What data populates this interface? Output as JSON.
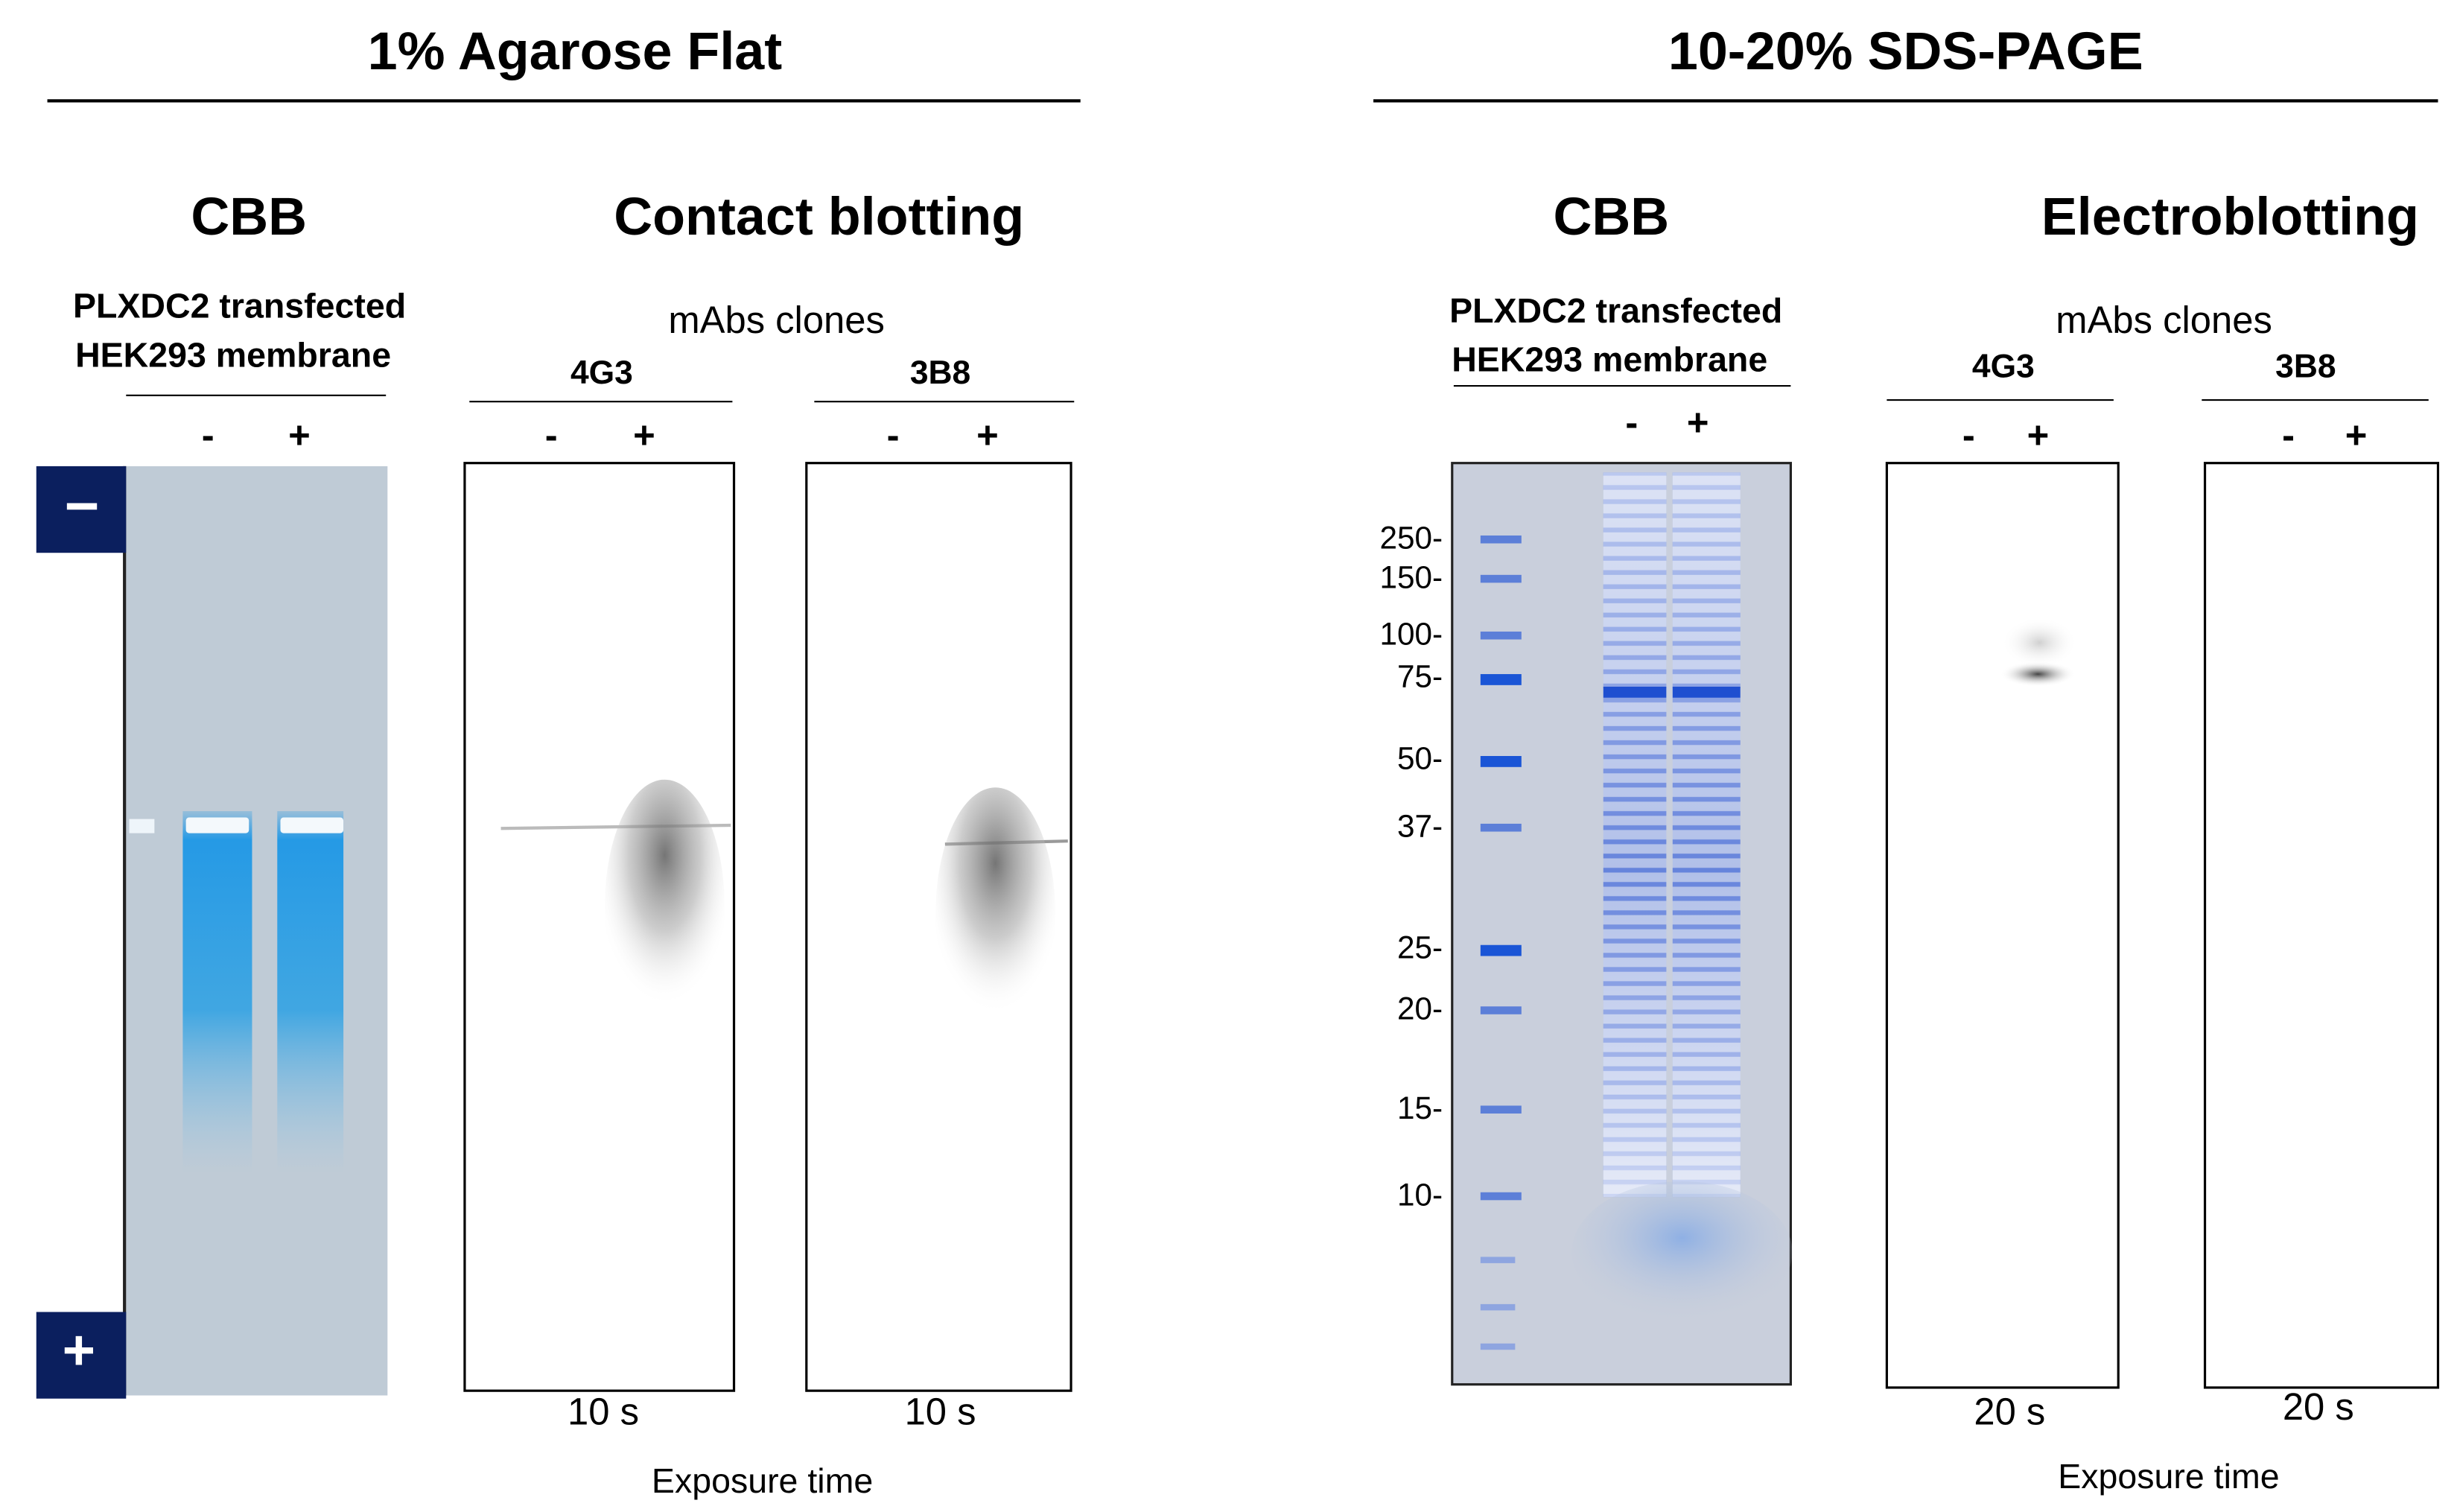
{
  "left": {
    "title": "1% Agarose Flat",
    "cbb": {
      "heading": "CBB",
      "sample": [
        "PLXDC2 transfected",
        "HEK293 membrane"
      ],
      "lanes": [
        "-",
        "+"
      ],
      "electrodes": [
        "−",
        "+"
      ]
    },
    "blotting": {
      "heading": "Contact blotting",
      "subheading": "mAbs clones",
      "blots": [
        {
          "clone": "4G3",
          "lanes": [
            "-",
            "+"
          ],
          "exposure": "10 s"
        },
        {
          "clone": "3B8",
          "lanes": [
            "-",
            "+"
          ],
          "exposure": "10 s"
        }
      ],
      "footer": "Exposure time"
    }
  },
  "right": {
    "title": "10-20% SDS-PAGE",
    "cbb": {
      "heading": "CBB",
      "sample": [
        "PLXDC2 transfected",
        "HEK293 membrane"
      ],
      "lanes": [
        "-",
        "+"
      ],
      "markers": [
        "250-",
        "150-",
        "100-",
        "75-",
        "50-",
        "37-",
        "25-",
        "20-",
        "15-",
        "10-"
      ]
    },
    "blotting": {
      "heading": "Electroblotting",
      "subheading": "mAbs clones",
      "blots": [
        {
          "clone": "4G3",
          "lanes": [
            "-",
            "+"
          ],
          "exposure": "20 s"
        },
        {
          "clone": "3B8",
          "lanes": [
            "-",
            "+"
          ],
          "exposure": "20 s"
        }
      ],
      "footer": "Exposure time"
    }
  }
}
